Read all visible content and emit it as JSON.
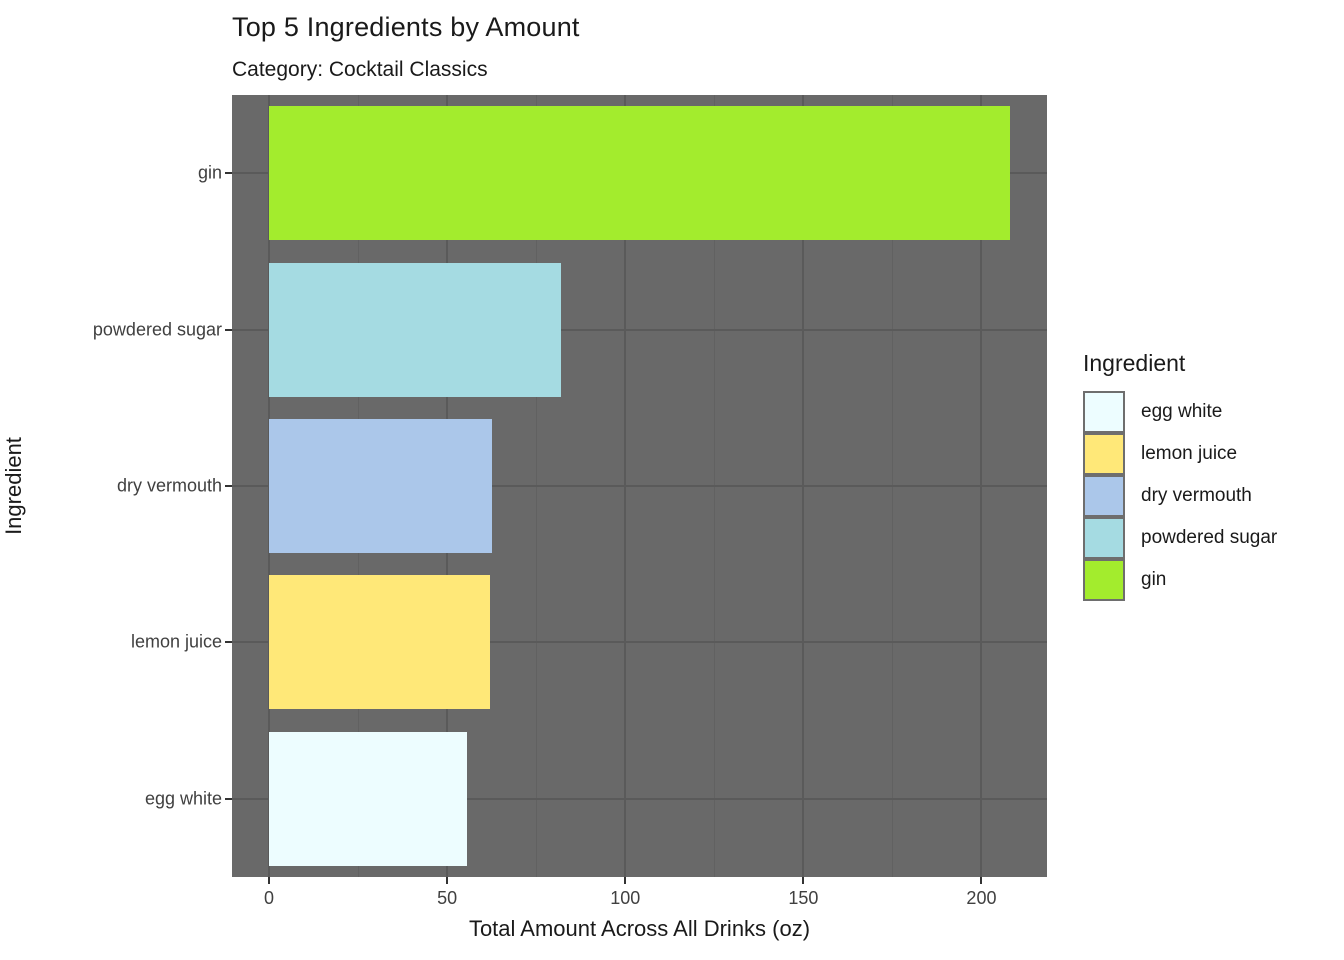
{
  "chart_data": {
    "type": "bar",
    "orientation": "horizontal",
    "title": "Top 5 Ingredients by Amount",
    "subtitle": "Category: Cocktail Classics",
    "xlabel": "Total Amount Across All Drinks (oz)",
    "ylabel": "Ingredient",
    "categories": [
      "gin",
      "powdered sugar",
      "dry vermouth",
      "lemon juice",
      "egg white"
    ],
    "values": [
      208,
      82,
      62.5,
      62,
      55.5
    ],
    "bar_colors": [
      "#a3ec2d",
      "#a5dbe2",
      "#abc7ea",
      "#ffe878",
      "#edfdff"
    ],
    "x_ticks": [
      0,
      50,
      100,
      150,
      200
    ],
    "x_minor_ticks": [
      25,
      75,
      125,
      175
    ],
    "xlim": [
      -10.4,
      218.4
    ],
    "grid": true,
    "legend": {
      "title": "Ingredient",
      "position": "right",
      "entries": [
        {
          "label": "egg white",
          "color": "#edfdff"
        },
        {
          "label": "lemon juice",
          "color": "#ffe878"
        },
        {
          "label": "dry vermouth",
          "color": "#abc7ea"
        },
        {
          "label": "powdered sugar",
          "color": "#a5dbe2"
        },
        {
          "label": "gin",
          "color": "#a3ec2d"
        }
      ]
    },
    "style": {
      "panel_bg": "#696969",
      "grid_major": "#5a5a5a",
      "grid_minor": "#616161",
      "tick_color": "#333333",
      "tick_label_color": "#404040",
      "text_color": "#1a1a1a"
    }
  }
}
